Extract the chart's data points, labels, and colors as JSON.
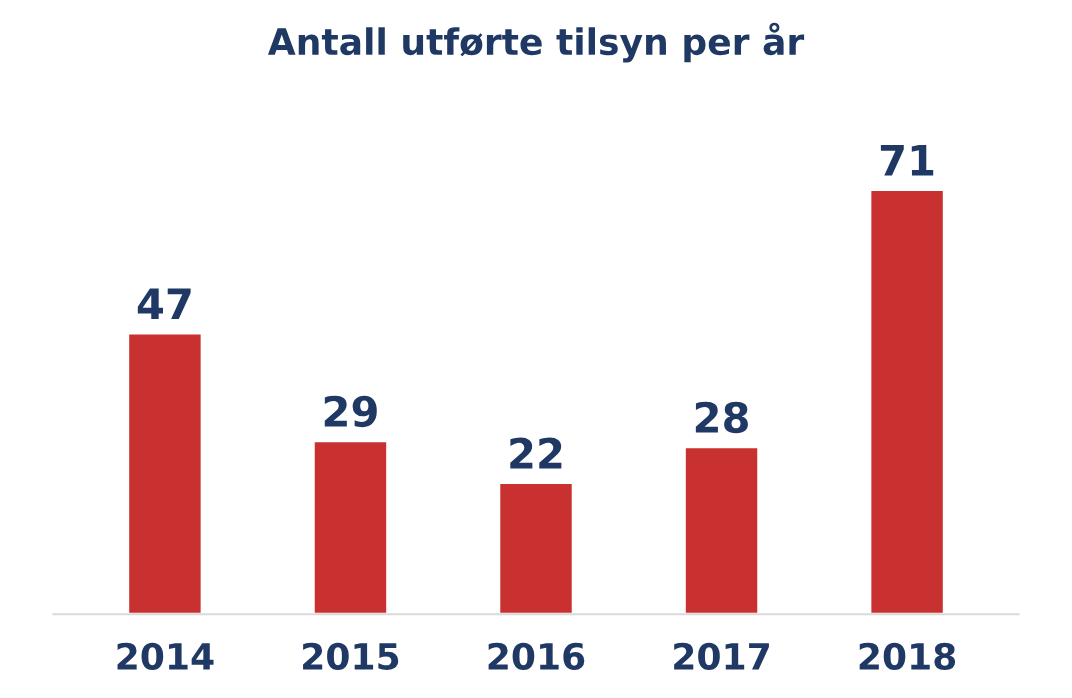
{
  "chart_data": {
    "type": "bar",
    "title": "Antall utførte tilsyn per år",
    "categories": [
      "2014",
      "2015",
      "2016",
      "2017",
      "2018"
    ],
    "values": [
      47,
      29,
      22,
      28,
      71
    ],
    "color": "#c8312f",
    "data_labels": true,
    "grid": false,
    "legend": false
  }
}
